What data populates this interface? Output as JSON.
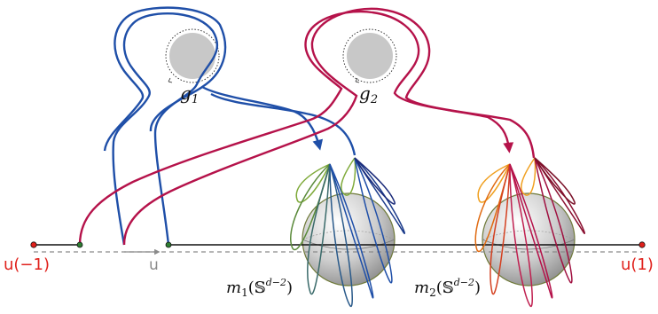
{
  "labels": {
    "g1": "g",
    "g1_sub": "1",
    "g2": "g",
    "g2_sub": "2",
    "u_left": "u(−1)",
    "u_right": "u(1)",
    "u_mid": "u",
    "m1_pre": "m",
    "m1_sub": "1",
    "m1_open": "(𝕊",
    "m1_sup": "d−2",
    "m1_close": ")",
    "m2_pre": "m",
    "m2_sub": "2",
    "m2_open": "(𝕊",
    "m2_sup": "d−2",
    "m2_close": ")"
  },
  "colors": {
    "blue": "#1f4fa8",
    "crimson": "#b5124a",
    "red_label": "#e0201b",
    "green_dot": "#2e7d32",
    "gray_disk": "#c8c8c8",
    "dashed": "#8a8a8a"
  }
}
